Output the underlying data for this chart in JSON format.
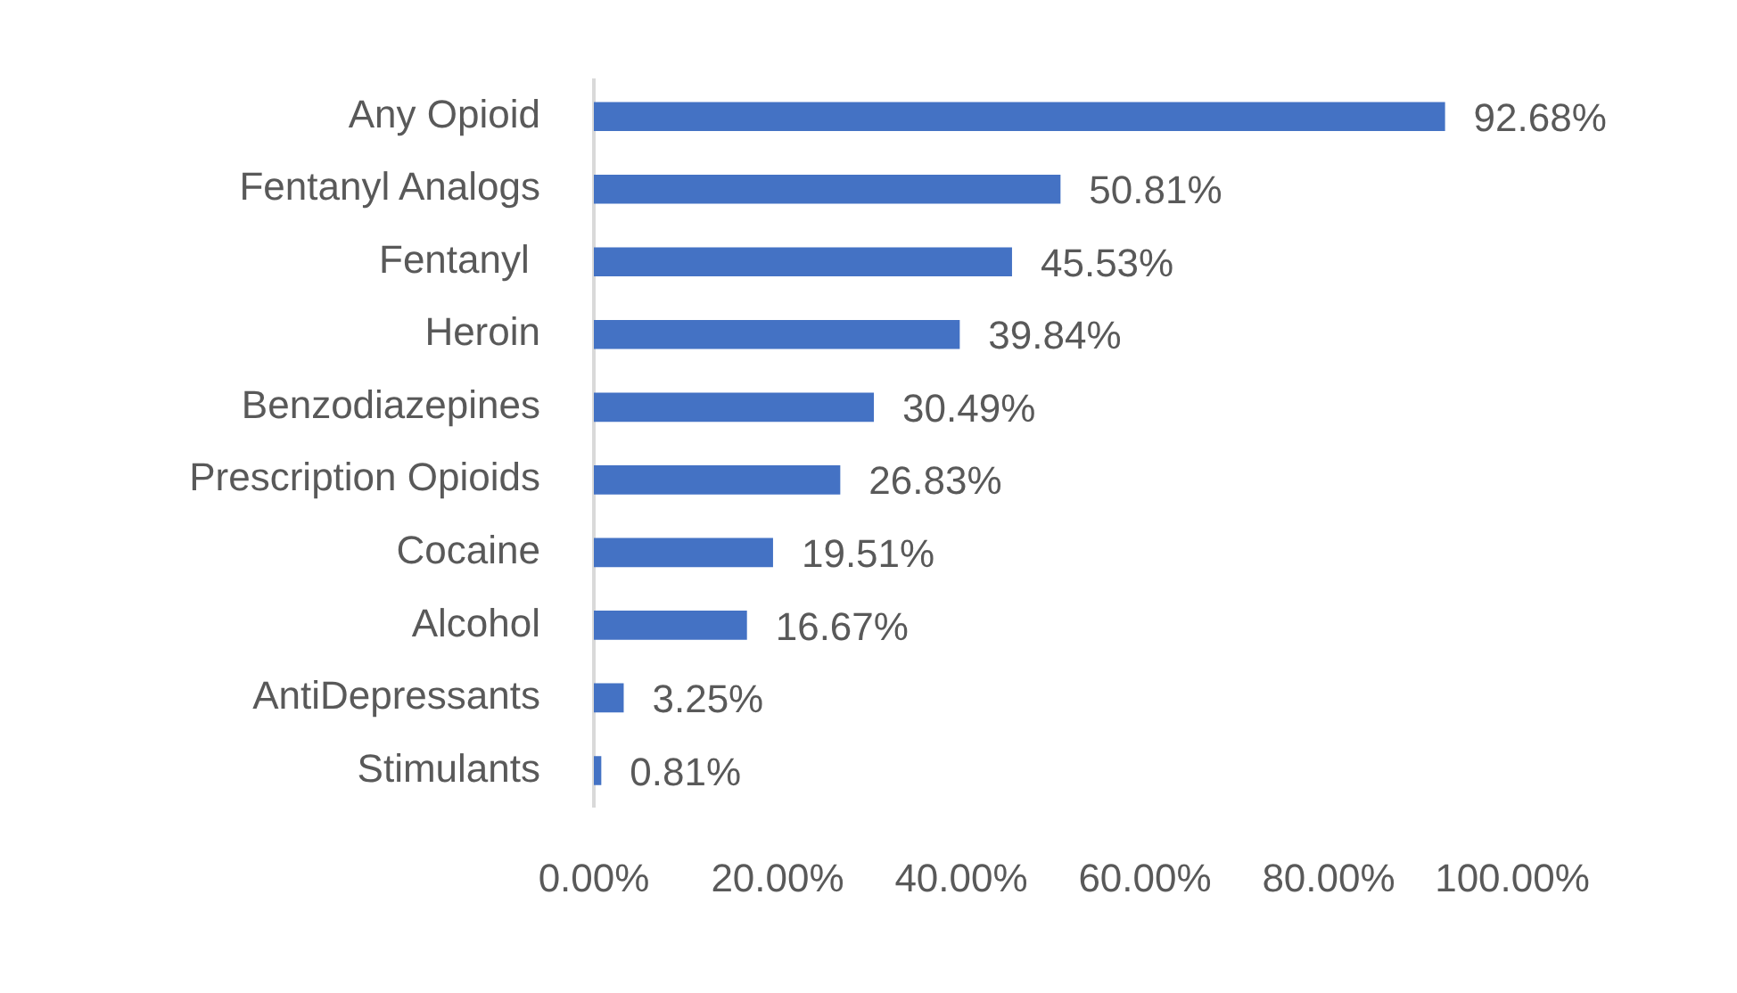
{
  "chart_data": {
    "type": "bar",
    "orientation": "horizontal",
    "categories": [
      "Any Opioid",
      "Fentanyl Analogs",
      "Fentanyl ",
      "Heroin",
      "Benzodiazepines",
      "Prescription Opioids",
      "Cocaine",
      "Alcohol",
      "AntiDepressants",
      "Stimulants"
    ],
    "values": [
      92.68,
      50.81,
      45.53,
      39.84,
      30.49,
      26.83,
      19.51,
      16.67,
      3.25,
      0.81
    ],
    "value_labels": [
      "92.68%",
      "50.81%",
      "45.53%",
      "39.84%",
      "30.49%",
      "26.83%",
      "19.51%",
      "16.67%",
      "3.25%",
      "0.81%"
    ],
    "color": "#4472c4",
    "xlim": [
      0,
      100
    ],
    "xticks": [
      {
        "value": 0,
        "label": "0.00%"
      },
      {
        "value": 20,
        "label": "20.00%"
      },
      {
        "value": 40,
        "label": "40.00%"
      },
      {
        "value": 60,
        "label": "60.00%"
      },
      {
        "value": 80,
        "label": "80.00%"
      },
      {
        "value": 100,
        "label": "100.00%"
      }
    ],
    "grid": false,
    "legend": false
  }
}
